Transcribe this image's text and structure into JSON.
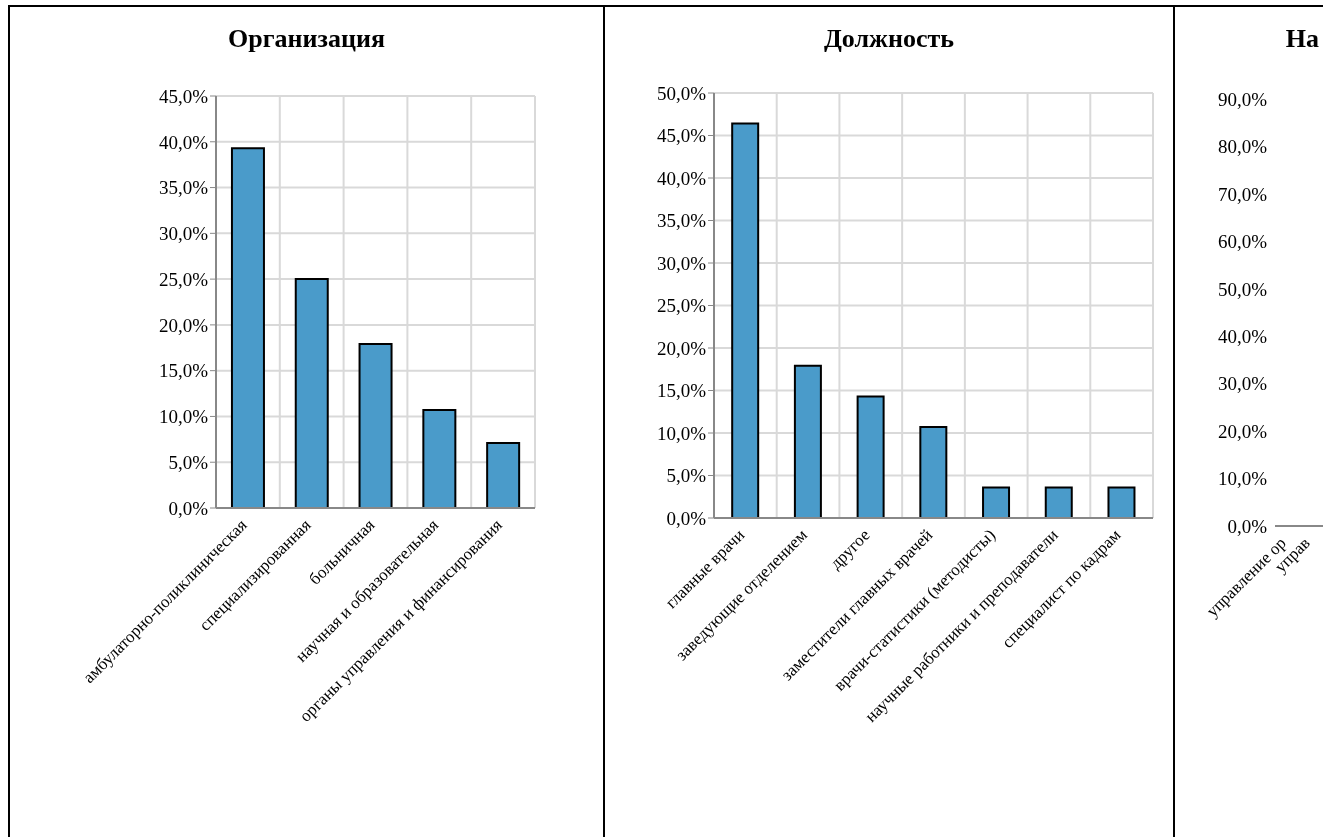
{
  "chart_data": [
    {
      "type": "bar",
      "title": "Организация",
      "categories": [
        "амбулаторно-поликлиническая",
        "специализированная",
        "больничная",
        "научная и образовательная",
        "органы управления и финансирования"
      ],
      "values": [
        39.3,
        25.0,
        17.9,
        10.7,
        7.1
      ],
      "color": "#4a9bca",
      "ylim": [
        0,
        45
      ],
      "yticks": [
        {
          "value": 0,
          "label": "0,0%"
        },
        {
          "value": 5,
          "label": "5,0%"
        },
        {
          "value": 10,
          "label": "10,0%"
        },
        {
          "value": 15,
          "label": "15,0%"
        },
        {
          "value": 20,
          "label": "20,0%"
        },
        {
          "value": 25,
          "label": "25,0%"
        },
        {
          "value": 30,
          "label": "30,0%"
        },
        {
          "value": 35,
          "label": "35,0%"
        },
        {
          "value": 40,
          "label": "40,0%"
        },
        {
          "value": 45,
          "label": "45,0%"
        }
      ],
      "grid": true
    },
    {
      "type": "bar",
      "title": "Должность",
      "categories": [
        "главные врачи",
        "заведующие отделением",
        "другое",
        "заместители главных врачей",
        "врачи-статистики (методисты)",
        "научные работники и преподаватели",
        "специалист по кадрам"
      ],
      "values": [
        46.4,
        17.9,
        14.3,
        10.7,
        3.6,
        3.6,
        3.6
      ],
      "color": "#4a9bca",
      "ylim": [
        0,
        50
      ],
      "yticks": [
        {
          "value": 0,
          "label": "0,0%"
        },
        {
          "value": 5,
          "label": "5,0%"
        },
        {
          "value": 10,
          "label": "10,0%"
        },
        {
          "value": 15,
          "label": "15,0%"
        },
        {
          "value": 20,
          "label": "20,0%"
        },
        {
          "value": 25,
          "label": "25,0%"
        },
        {
          "value": 30,
          "label": "30,0%"
        },
        {
          "value": 35,
          "label": "35,0%"
        },
        {
          "value": 40,
          "label": "40,0%"
        },
        {
          "value": 45,
          "label": "45,0%"
        },
        {
          "value": 50,
          "label": "50,0%"
        }
      ],
      "grid": true
    },
    {
      "type": "bar",
      "title": "На",
      "categories": [
        "управление ор",
        "управ"
      ],
      "values": [
        null,
        null
      ],
      "ylim": [
        0,
        90
      ],
      "yticks": [
        {
          "value": 0,
          "label": "0,0%"
        },
        {
          "value": 10,
          "label": "10,0%"
        },
        {
          "value": 20,
          "label": "20,0%"
        },
        {
          "value": 30,
          "label": "30,0%"
        },
        {
          "value": 40,
          "label": "40,0%"
        },
        {
          "value": 50,
          "label": "50,0%"
        },
        {
          "value": 60,
          "label": "60,0%"
        },
        {
          "value": 70,
          "label": "70,0%"
        },
        {
          "value": 80,
          "label": "80,0%"
        },
        {
          "value": 90,
          "label": "90,0%"
        }
      ]
    }
  ]
}
